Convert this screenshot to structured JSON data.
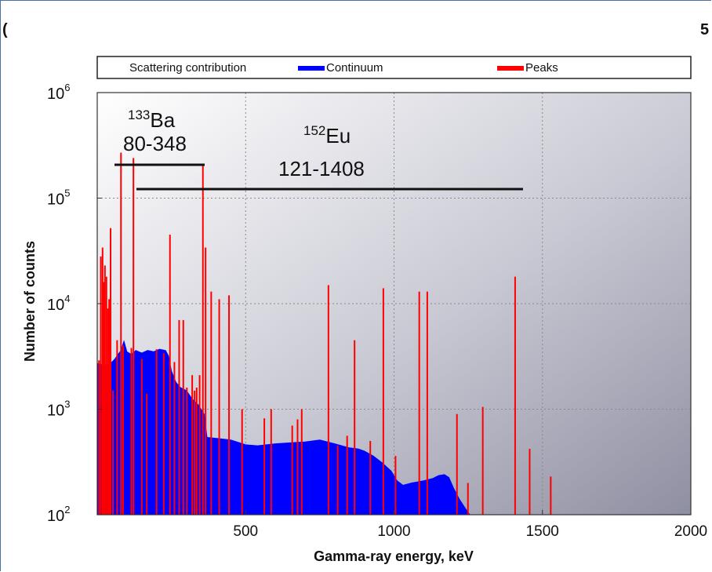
{
  "chart_data": {
    "type": "line",
    "xlabel": "Gamma-ray energy, keV",
    "ylabel": "Number of counts",
    "xlim": [
      0,
      2000
    ],
    "ylim": [
      100,
      1000000
    ],
    "y_scale": "log",
    "x_ticks": [
      500,
      1000,
      1500,
      2000
    ],
    "x_tick_labels": [
      "500",
      "1000",
      "1500",
      "2000"
    ],
    "y_ticks": [
      {
        "base": "10",
        "exp": "2",
        "value": 100
      },
      {
        "base": "10",
        "exp": "3",
        "value": 1000
      },
      {
        "base": "10",
        "exp": "4",
        "value": 10000
      },
      {
        "base": "10",
        "exp": "5",
        "value": 100000
      },
      {
        "base": "10",
        "exp": "6",
        "value": 1000000
      }
    ],
    "grid": true,
    "legend_position": "top",
    "legend": [
      {
        "label": "Scattering contribution",
        "color": "#ffffff"
      },
      {
        "label": "Continuum",
        "color": "#0000ff"
      },
      {
        "label": "Peaks",
        "color": "#ff0000"
      }
    ],
    "series": [
      {
        "name": "Continuum",
        "color": "#0000ff",
        "points": [
          [
            0,
            2700
          ],
          [
            30,
            2600
          ],
          [
            50,
            2800
          ],
          [
            60,
            3000
          ],
          [
            70,
            3300
          ],
          [
            80,
            3600
          ],
          [
            90,
            4400
          ],
          [
            100,
            3500
          ],
          [
            115,
            3300
          ],
          [
            130,
            3600
          ],
          [
            150,
            3400
          ],
          [
            170,
            3600
          ],
          [
            190,
            3500
          ],
          [
            210,
            3700
          ],
          [
            230,
            3600
          ],
          [
            240,
            3200
          ],
          [
            250,
            2300
          ],
          [
            265,
            1800
          ],
          [
            280,
            1600
          ],
          [
            300,
            1500
          ],
          [
            320,
            1250
          ],
          [
            340,
            1100
          ],
          [
            360,
            900
          ],
          [
            370,
            540
          ],
          [
            400,
            530
          ],
          [
            450,
            510
          ],
          [
            500,
            460
          ],
          [
            540,
            450
          ],
          [
            600,
            470
          ],
          [
            650,
            480
          ],
          [
            700,
            490
          ],
          [
            750,
            510
          ],
          [
            800,
            470
          ],
          [
            850,
            430
          ],
          [
            880,
            420
          ],
          [
            900,
            400
          ],
          [
            930,
            360
          ],
          [
            960,
            310
          ],
          [
            990,
            260
          ],
          [
            1010,
            210
          ],
          [
            1030,
            190
          ],
          [
            1060,
            200
          ],
          [
            1100,
            210
          ],
          [
            1130,
            220
          ],
          [
            1150,
            235
          ],
          [
            1170,
            240
          ],
          [
            1185,
            225
          ],
          [
            1200,
            180
          ],
          [
            1220,
            140
          ],
          [
            1240,
            115
          ],
          [
            1255,
            100
          ]
        ]
      },
      {
        "name": "Peaks",
        "color": "#ff0000",
        "peaks": [
          [
            6,
            2900
          ],
          [
            12,
            28000
          ],
          [
            18,
            34000
          ],
          [
            22,
            16000
          ],
          [
            26,
            23000
          ],
          [
            31,
            18000
          ],
          [
            36,
            9000
          ],
          [
            40,
            11000
          ],
          [
            45,
            52000
          ],
          [
            53,
            1500
          ],
          [
            67,
            4500
          ],
          [
            80,
            270000
          ],
          [
            87,
            4000
          ],
          [
            115,
            3800
          ],
          [
            122,
            240000
          ],
          [
            150,
            3000
          ],
          [
            167,
            1400
          ],
          [
            200,
            3700
          ],
          [
            224,
            3400
          ],
          [
            245,
            45000
          ],
          [
            260,
            2800
          ],
          [
            276,
            7000
          ],
          [
            290,
            7000
          ],
          [
            302,
            1600
          ],
          [
            320,
            2100
          ],
          [
            328,
            1500
          ],
          [
            335,
            1600
          ],
          [
            345,
            2100
          ],
          [
            356,
            210000
          ],
          [
            365,
            34000
          ],
          [
            384,
            13000
          ],
          [
            411,
            11000
          ],
          [
            444,
            12000
          ],
          [
            488,
            1000
          ],
          [
            563,
            820
          ],
          [
            586,
            1000
          ],
          [
            657,
            700
          ],
          [
            675,
            800
          ],
          [
            689,
            1000
          ],
          [
            779,
            15000
          ],
          [
            810,
            450
          ],
          [
            842,
            560
          ],
          [
            867,
            4500
          ],
          [
            920,
            500
          ],
          [
            964,
            14000
          ],
          [
            1005,
            360
          ],
          [
            1085,
            13000
          ],
          [
            1112,
            13000
          ],
          [
            1212,
            900
          ],
          [
            1249,
            200
          ],
          [
            1299,
            1050
          ],
          [
            1408,
            18000
          ],
          [
            1457,
            420
          ],
          [
            1528,
            230
          ]
        ]
      }
    ],
    "annotations": [
      {
        "isotope": "Ba",
        "mass": "133",
        "range": "80-348",
        "from": 80,
        "to": 348
      },
      {
        "isotope": "Eu",
        "mass": "152",
        "range": "121-1408",
        "from": 121,
        "to": 1408
      }
    ]
  }
}
